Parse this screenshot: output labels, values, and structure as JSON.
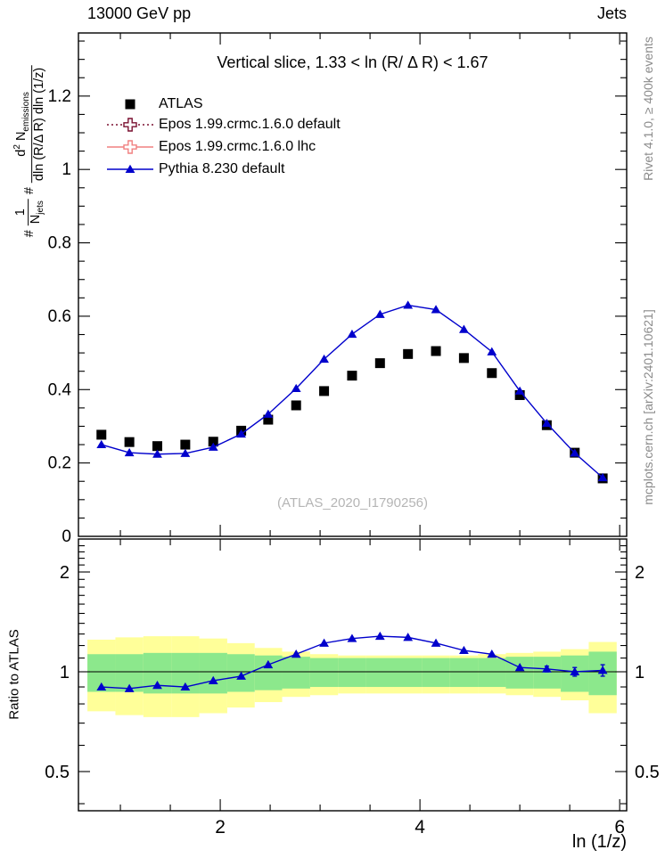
{
  "header": {
    "left": "13000 GeV pp",
    "right": "Jets"
  },
  "plot_title": "Vertical slice, 1.33 < ln (R/ Δ R) < 1.67",
  "legend": {
    "items": [
      {
        "label": "ATLAS"
      },
      {
        "label": "Epos 1.99.crmc.1.6.0 default"
      },
      {
        "label": "Epos 1.99.crmc.1.6.0 lhc"
      },
      {
        "label": "Pythia 8.230 default"
      }
    ]
  },
  "watermark": "(ATLAS_2020_I1790256)",
  "side_notes": {
    "top": "Rivet 4.1.0, ≥ 400k events",
    "bottom": "mcplots.cern.ch [arXiv:2401.10621]"
  },
  "x_axis_label": "ln (1/z)",
  "ratio_axis_label": "Ratio to ATLAS",
  "y_axis_label_parts": {
    "hash1": "#",
    "frac1_num": "1",
    "frac1_den": "N",
    "frac1_den_sub": "jets",
    "hash2": "#",
    "frac2_num_d": "d",
    "frac2_num_sup": "2",
    "frac2_num_N": " N",
    "frac2_num_sub": "emissions",
    "frac2_den": "dln (R/Δ R) dln (1/z)"
  },
  "colors": {
    "atlas_black": "#000000",
    "epos_default_maroon": "#7a1030",
    "epos_lhc_salmon": "#f08080",
    "pythia_blue": "#0000cc",
    "band_yellow": "#ffff99",
    "band_green": "#8ce88c",
    "watermark_gray": "#b5b5b5",
    "side_note_gray": "#8a8a8a"
  },
  "chart_data": {
    "type": "scatter",
    "title": "Vertical slice, 1.33 < ln (R/ Δ R) < 1.67",
    "xlabel": "ln (1/z)",
    "ylabel": "# 1/N_jets # d²N_emissions / dln (R/Δ R) dln (1/z)",
    "x": [
      0.81,
      1.09,
      1.37,
      1.65,
      1.93,
      2.21,
      2.48,
      2.76,
      3.04,
      3.32,
      3.6,
      3.88,
      4.16,
      4.44,
      4.72,
      5.0,
      5.27,
      5.55,
      5.83
    ],
    "bin_half_width": 0.14,
    "series": [
      {
        "name": "ATLAS",
        "marker": "filled-square",
        "line": "none",
        "color": "#000000",
        "values": [
          0.277,
          0.257,
          0.246,
          0.25,
          0.258,
          0.288,
          0.318,
          0.357,
          0.396,
          0.438,
          0.472,
          0.497,
          0.505,
          0.486,
          0.445,
          0.385,
          0.303,
          0.228,
          0.158
        ]
      },
      {
        "name": "Epos 1.99.crmc.1.6.0 default",
        "marker": "open-cross",
        "line": "dotted",
        "color": "#7a1030",
        "values": []
      },
      {
        "name": "Epos 1.99.crmc.1.6.0 lhc",
        "marker": "open-cross",
        "line": "solid",
        "color": "#f08080",
        "values": []
      },
      {
        "name": "Pythia 8.230 default",
        "marker": "filled-triangle",
        "line": "solid",
        "color": "#0000cc",
        "values": [
          0.25,
          0.228,
          0.224,
          0.226,
          0.243,
          0.279,
          0.333,
          0.403,
          0.483,
          0.551,
          0.605,
          0.63,
          0.618,
          0.564,
          0.503,
          0.396,
          0.308,
          0.227,
          0.16
        ]
      }
    ],
    "main_axis": {
      "xlim": [
        0.58,
        6.07
      ],
      "ylim": [
        0,
        1.372
      ],
      "x_major": [
        2,
        4,
        6
      ],
      "x_major_labels": [
        "2",
        "4",
        "6"
      ],
      "x_minor_step": 0.5,
      "y_major": [
        0,
        0.2,
        0.4,
        0.6,
        0.8,
        1,
        1.2
      ],
      "y_major_labels": [
        "0",
        "0.2",
        "0.4",
        "0.6",
        "0.8",
        "1",
        "1.2"
      ],
      "y_minor_step": 0.05,
      "grid": false,
      "legend_position": "top-left"
    },
    "ratio_axis": {
      "scale": "log",
      "ylim": [
        0.381,
        2.51
      ],
      "y_major": [
        0.5,
        1,
        2
      ],
      "y_major_labels": [
        "0.5",
        "1",
        "2"
      ],
      "y_minor": [
        0.4,
        0.6,
        0.7,
        0.8,
        0.9,
        1.1,
        1.2,
        1.3,
        1.4,
        1.5,
        1.6,
        1.7,
        1.8,
        1.9,
        2.1,
        2.2,
        2.3,
        2.4,
        2.5
      ]
    },
    "ratio": {
      "name": "Pythia 8.230 default / ATLAS",
      "color": "#0000cc",
      "values": [
        0.9,
        0.89,
        0.91,
        0.9,
        0.94,
        0.97,
        1.05,
        1.13,
        1.22,
        1.26,
        1.28,
        1.27,
        1.22,
        1.16,
        1.13,
        1.03,
        1.02,
        1.0,
        1.01
      ],
      "errors": [
        0,
        0,
        0,
        0,
        0,
        0,
        0,
        0,
        0,
        0,
        0,
        0,
        0,
        0,
        0,
        0,
        0.02,
        0.03,
        0.04
      ]
    },
    "bands": {
      "yellow": [
        [
          0.76,
          1.25
        ],
        [
          0.74,
          1.27
        ],
        [
          0.73,
          1.28
        ],
        [
          0.73,
          1.28
        ],
        [
          0.75,
          1.26
        ],
        [
          0.78,
          1.22
        ],
        [
          0.81,
          1.18
        ],
        [
          0.84,
          1.15
        ],
        [
          0.85,
          1.13
        ],
        [
          0.86,
          1.12
        ],
        [
          0.86,
          1.12
        ],
        [
          0.86,
          1.12
        ],
        [
          0.86,
          1.12
        ],
        [
          0.86,
          1.12
        ],
        [
          0.86,
          1.13
        ],
        [
          0.85,
          1.14
        ],
        [
          0.84,
          1.15
        ],
        [
          0.82,
          1.17
        ],
        [
          0.75,
          1.23
        ]
      ],
      "green": [
        [
          0.87,
          1.13
        ],
        [
          0.87,
          1.13
        ],
        [
          0.86,
          1.14
        ],
        [
          0.86,
          1.14
        ],
        [
          0.86,
          1.14
        ],
        [
          0.87,
          1.13
        ],
        [
          0.88,
          1.12
        ],
        [
          0.89,
          1.11
        ],
        [
          0.9,
          1.1
        ],
        [
          0.9,
          1.1
        ],
        [
          0.9,
          1.1
        ],
        [
          0.9,
          1.1
        ],
        [
          0.9,
          1.1
        ],
        [
          0.9,
          1.1
        ],
        [
          0.9,
          1.1
        ],
        [
          0.89,
          1.11
        ],
        [
          0.89,
          1.11
        ],
        [
          0.87,
          1.12
        ],
        [
          0.85,
          1.15
        ]
      ]
    }
  }
}
